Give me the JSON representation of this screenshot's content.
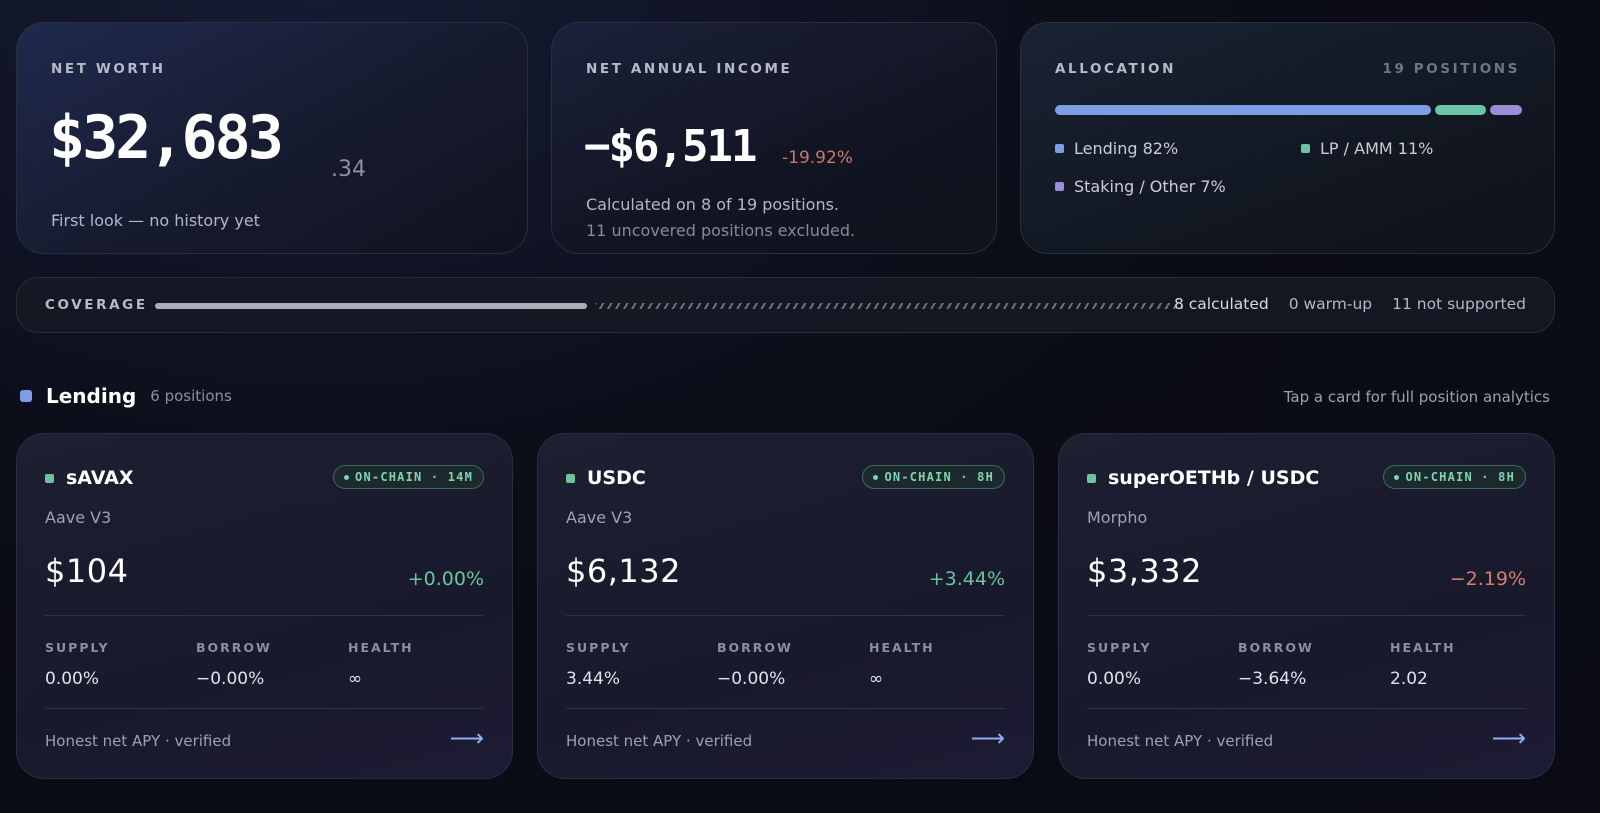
{
  "net_worth": {
    "label": "NET WORTH",
    "value": "$32,683",
    "cents": ".34",
    "note": "First look — no history yet"
  },
  "income": {
    "label": "NET ANNUAL INCOME",
    "value": "−$6,511",
    "change": "-19.92%",
    "note1": "Calculated on 8 of 19 positions.",
    "note2": "11 uncovered positions excluded."
  },
  "allocation": {
    "label": "ALLOCATION",
    "positions": "19 POSITIONS",
    "segments": [
      {
        "label": "Lending 82%",
        "share": 82,
        "color": "#7e9ee3"
      },
      {
        "label": "LP / AMM 11%",
        "share": 11,
        "color": "#6cc4a6"
      },
      {
        "label": "Staking / Other 7%",
        "share": 7,
        "color": "#9a8fd6"
      }
    ]
  },
  "coverage": {
    "label": "COVERAGE",
    "calculated": "8 calculated",
    "warmup": "0 warm-up",
    "unsupported": "11 not supported",
    "calculated_fraction": 0.42
  },
  "lending": {
    "title": "Lending",
    "count": "6 positions",
    "hint": "Tap a card for full position analytics",
    "cards": [
      {
        "name": "sAVAX",
        "badge": "ON-CHAIN · 14M",
        "protocol": "Aave V3",
        "value": "$104",
        "change": "+0.00%",
        "trend": "up",
        "supply_label": "SUPPLY",
        "supply": "0.00%",
        "borrow_label": "BORROW",
        "borrow": "−0.00%",
        "health_label": "HEALTH",
        "health": "∞",
        "footer": "Honest net APY · verified",
        "arrow": "⟶"
      },
      {
        "name": "USDC",
        "badge": "ON-CHAIN · 8H",
        "protocol": "Aave V3",
        "value": "$6,132",
        "change": "+3.44%",
        "trend": "up",
        "supply_label": "SUPPLY",
        "supply": "3.44%",
        "borrow_label": "BORROW",
        "borrow": "−0.00%",
        "health_label": "HEALTH",
        "health": "∞",
        "footer": "Honest net APY · verified",
        "arrow": "⟶"
      },
      {
        "name": "superOETHb / USDC",
        "badge": "ON-CHAIN · 8H",
        "protocol": "Morpho",
        "value": "$3,332",
        "change": "−2.19%",
        "trend": "down",
        "supply_label": "SUPPLY",
        "supply": "0.00%",
        "borrow_label": "BORROW",
        "borrow": "−3.64%",
        "health_label": "HEALTH",
        "health": "2.02",
        "footer": "Honest net APY · verified",
        "arrow": "⟶"
      }
    ]
  }
}
